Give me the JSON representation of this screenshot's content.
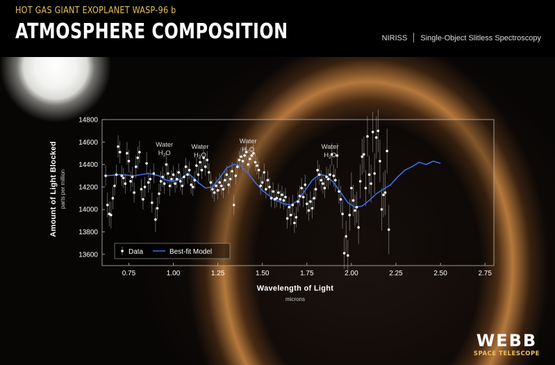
{
  "header": {
    "subtitle": "HOT GAS GIANT EXOPLANET WASP-96 b",
    "title": "ATMOSPHERE COMPOSITION",
    "instrument": "NIRISS",
    "mode": "Single-Object Slitless Spectroscopy"
  },
  "logo": {
    "word": "WEBB",
    "sub": "SPACE TELESCOPE"
  },
  "colors": {
    "subtitle": "#e8c15a",
    "model_line": "#3b6fe0",
    "data_points": "#ffffff",
    "plot_frame": "#bbbbbb"
  },
  "chart_data": {
    "type": "scatter",
    "xlabel": "Wavelength of Light",
    "xunit": "microns",
    "ylabel": "Amount of Light Blocked",
    "yunit": "parts per million",
    "xlim": [
      0.6,
      2.8
    ],
    "ylim": [
      13500,
      14800
    ],
    "xticks": [
      "0.75",
      "1.00",
      "1.25",
      "1.50",
      "1.75",
      "2.00",
      "2.25",
      "2.50",
      "2.75"
    ],
    "yticks": [
      "13600",
      "13800",
      "14000",
      "14200",
      "14400",
      "14600",
      "14800"
    ],
    "grid": false,
    "legend_position": "bottom-left",
    "legend": [
      "Data",
      "Best-fit Model"
    ],
    "annotations": [
      {
        "label": "Water",
        "formula": "H",
        "sub": "2",
        "tail": "O",
        "x": 0.95,
        "y": 14560
      },
      {
        "label": "Water",
        "formula": "H",
        "sub": "2",
        "tail": "O",
        "x": 1.15,
        "y": 14540
      },
      {
        "label": "Water",
        "formula": "H",
        "sub": "2",
        "tail": "O",
        "x": 1.42,
        "y": 14590
      },
      {
        "label": "Water",
        "formula": "H",
        "sub": "2",
        "tail": "O",
        "x": 1.88,
        "y": 14540
      }
    ],
    "series": [
      {
        "name": "Data",
        "points": [
          [
            0.62,
            14300,
            90
          ],
          [
            0.63,
            14040,
            110
          ],
          [
            0.64,
            13960,
            110
          ],
          [
            0.65,
            13950,
            120
          ],
          [
            0.66,
            14100,
            100
          ],
          [
            0.67,
            14210,
            90
          ],
          [
            0.68,
            14310,
            90
          ],
          [
            0.69,
            14560,
            100
          ],
          [
            0.7,
            14510,
            100
          ],
          [
            0.71,
            14300,
            90
          ],
          [
            0.72,
            14280,
            90
          ],
          [
            0.73,
            14230,
            90
          ],
          [
            0.74,
            14500,
            100
          ],
          [
            0.75,
            14430,
            100
          ],
          [
            0.76,
            14250,
            90
          ],
          [
            0.77,
            14290,
            90
          ],
          [
            0.78,
            14150,
            90
          ],
          [
            0.79,
            14380,
            100
          ],
          [
            0.8,
            14460,
            100
          ],
          [
            0.81,
            14510,
            100
          ],
          [
            0.82,
            14180,
            90
          ],
          [
            0.83,
            14090,
            90
          ],
          [
            0.84,
            14200,
            90
          ],
          [
            0.85,
            14410,
            100
          ],
          [
            0.86,
            14240,
            90
          ],
          [
            0.87,
            14270,
            90
          ],
          [
            0.88,
            14060,
            90
          ],
          [
            0.89,
            14320,
            90
          ],
          [
            0.9,
            13910,
            110
          ],
          [
            0.91,
            14010,
            100
          ],
          [
            0.92,
            14140,
            90
          ],
          [
            0.93,
            14250,
            90
          ],
          [
            0.94,
            14290,
            90
          ],
          [
            0.95,
            14230,
            90
          ],
          [
            0.96,
            14400,
            100
          ],
          [
            0.97,
            14320,
            90
          ],
          [
            0.98,
            14210,
            90
          ],
          [
            0.99,
            14270,
            80
          ],
          [
            1.0,
            14310,
            80
          ],
          [
            1.01,
            14230,
            80
          ],
          [
            1.02,
            14270,
            80
          ],
          [
            1.03,
            14330,
            80
          ],
          [
            1.04,
            14250,
            80
          ],
          [
            1.05,
            14210,
            80
          ],
          [
            1.06,
            14290,
            80
          ],
          [
            1.07,
            14380,
            80
          ],
          [
            1.08,
            14310,
            80
          ],
          [
            1.09,
            14350,
            80
          ],
          [
            1.1,
            14220,
            80
          ],
          [
            1.11,
            14200,
            80
          ],
          [
            1.12,
            14260,
            80
          ],
          [
            1.13,
            14390,
            80
          ],
          [
            1.14,
            14310,
            80
          ],
          [
            1.15,
            14420,
            80
          ],
          [
            1.16,
            14350,
            80
          ],
          [
            1.17,
            14460,
            80
          ],
          [
            1.18,
            14380,
            80
          ],
          [
            1.19,
            14440,
            80
          ],
          [
            1.2,
            14330,
            80
          ],
          [
            1.21,
            14240,
            80
          ],
          [
            1.22,
            14180,
            80
          ],
          [
            1.23,
            14150,
            80
          ],
          [
            1.24,
            14210,
            80
          ],
          [
            1.25,
            14170,
            80
          ],
          [
            1.26,
            14240,
            80
          ],
          [
            1.27,
            14210,
            80
          ],
          [
            1.28,
            14180,
            80
          ],
          [
            1.29,
            14260,
            80
          ],
          [
            1.3,
            14310,
            80
          ],
          [
            1.31,
            14220,
            80
          ],
          [
            1.32,
            14270,
            80
          ],
          [
            1.33,
            14340,
            80
          ],
          [
            1.34,
            14040,
            90
          ],
          [
            1.35,
            14300,
            80
          ],
          [
            1.36,
            14380,
            80
          ],
          [
            1.37,
            14440,
            80
          ],
          [
            1.38,
            14470,
            80
          ],
          [
            1.39,
            14430,
            80
          ],
          [
            1.4,
            14480,
            80
          ],
          [
            1.41,
            14510,
            80
          ],
          [
            1.42,
            14400,
            80
          ],
          [
            1.43,
            14450,
            80
          ],
          [
            1.44,
            14480,
            80
          ],
          [
            1.45,
            14500,
            80
          ],
          [
            1.46,
            14420,
            80
          ],
          [
            1.47,
            14390,
            80
          ],
          [
            1.48,
            14350,
            80
          ],
          [
            1.49,
            14210,
            80
          ],
          [
            1.5,
            14240,
            80
          ],
          [
            1.51,
            14330,
            80
          ],
          [
            1.52,
            14180,
            80
          ],
          [
            1.53,
            14260,
            80
          ],
          [
            1.54,
            14200,
            80
          ],
          [
            1.55,
            14100,
            80
          ],
          [
            1.56,
            14160,
            80
          ],
          [
            1.57,
            14090,
            80
          ],
          [
            1.58,
            14100,
            80
          ],
          [
            1.59,
            14150,
            80
          ],
          [
            1.6,
            14090,
            80
          ],
          [
            1.61,
            14130,
            80
          ],
          [
            1.62,
            14080,
            80
          ],
          [
            1.63,
            14110,
            80
          ],
          [
            1.64,
            13920,
            90
          ],
          [
            1.65,
            14020,
            90
          ],
          [
            1.66,
            13950,
            90
          ],
          [
            1.67,
            14040,
            90
          ],
          [
            1.68,
            13880,
            90
          ],
          [
            1.69,
            13930,
            90
          ],
          [
            1.7,
            14070,
            90
          ],
          [
            1.71,
            14120,
            90
          ],
          [
            1.72,
            14190,
            90
          ],
          [
            1.73,
            14110,
            90
          ],
          [
            1.74,
            14220,
            90
          ],
          [
            1.75,
            14050,
            90
          ],
          [
            1.76,
            13990,
            90
          ],
          [
            1.77,
            14070,
            90
          ],
          [
            1.78,
            14010,
            90
          ],
          [
            1.79,
            14100,
            90
          ],
          [
            1.8,
            14180,
            90
          ],
          [
            1.81,
            14350,
            90
          ],
          [
            1.82,
            14310,
            90
          ],
          [
            1.83,
            14260,
            90
          ],
          [
            1.84,
            14230,
            90
          ],
          [
            1.85,
            14190,
            90
          ],
          [
            1.86,
            14290,
            90
          ],
          [
            1.87,
            14270,
            90
          ],
          [
            1.88,
            14310,
            90
          ],
          [
            1.89,
            14490,
            100
          ],
          [
            1.9,
            14300,
            100
          ],
          [
            1.91,
            14260,
            100
          ],
          [
            1.92,
            14480,
            110
          ],
          [
            1.93,
            14160,
            110
          ],
          [
            1.94,
            14090,
            120
          ],
          [
            1.95,
            13960,
            130
          ],
          [
            1.96,
            13610,
            140
          ],
          [
            1.97,
            13760,
            140
          ],
          [
            1.98,
            13590,
            140
          ],
          [
            1.99,
            13950,
            140
          ],
          [
            2.0,
            14190,
            140
          ],
          [
            2.01,
            14080,
            140
          ],
          [
            2.02,
            13990,
            140
          ],
          [
            2.03,
            14020,
            140
          ],
          [
            2.04,
            13840,
            150
          ],
          [
            2.05,
            14250,
            150
          ],
          [
            2.06,
            14470,
            160
          ],
          [
            2.07,
            14490,
            160
          ],
          [
            2.08,
            14190,
            160
          ],
          [
            2.09,
            14650,
            180
          ],
          [
            2.1,
            14310,
            170
          ],
          [
            2.11,
            14230,
            170
          ],
          [
            2.12,
            14690,
            180
          ],
          [
            2.13,
            14320,
            180
          ],
          [
            2.14,
            14640,
            190
          ],
          [
            2.15,
            14700,
            190
          ],
          [
            2.16,
            14430,
            190
          ],
          [
            2.17,
            14000,
            190
          ],
          [
            2.18,
            14130,
            200
          ],
          [
            2.19,
            14150,
            200
          ],
          [
            2.2,
            14520,
            200
          ],
          [
            2.21,
            13820,
            220
          ]
        ]
      },
      {
        "name": "Best-fit Model",
        "points": [
          [
            0.62,
            14300
          ],
          [
            0.7,
            14310
          ],
          [
            0.78,
            14300
          ],
          [
            0.86,
            14320
          ],
          [
            0.92,
            14300
          ],
          [
            0.96,
            14260
          ],
          [
            1.0,
            14250
          ],
          [
            1.04,
            14270
          ],
          [
            1.08,
            14320
          ],
          [
            1.1,
            14300
          ],
          [
            1.14,
            14240
          ],
          [
            1.18,
            14190
          ],
          [
            1.22,
            14200
          ],
          [
            1.26,
            14280
          ],
          [
            1.3,
            14370
          ],
          [
            1.34,
            14400
          ],
          [
            1.38,
            14390
          ],
          [
            1.42,
            14320
          ],
          [
            1.46,
            14240
          ],
          [
            1.5,
            14170
          ],
          [
            1.54,
            14120
          ],
          [
            1.58,
            14080
          ],
          [
            1.62,
            14050
          ],
          [
            1.66,
            14040
          ],
          [
            1.7,
            14080
          ],
          [
            1.74,
            14170
          ],
          [
            1.78,
            14260
          ],
          [
            1.82,
            14310
          ],
          [
            1.86,
            14300
          ],
          [
            1.9,
            14240
          ],
          [
            1.94,
            14150
          ],
          [
            1.98,
            14060
          ],
          [
            2.02,
            14020
          ],
          [
            2.06,
            14030
          ],
          [
            2.1,
            14080
          ],
          [
            2.14,
            14140
          ],
          [
            2.18,
            14180
          ],
          [
            2.22,
            14220
          ],
          [
            2.26,
            14290
          ],
          [
            2.3,
            14350
          ],
          [
            2.34,
            14380
          ],
          [
            2.38,
            14420
          ],
          [
            2.42,
            14400
          ],
          [
            2.46,
            14430
          ],
          [
            2.5,
            14410
          ]
        ]
      }
    ]
  }
}
